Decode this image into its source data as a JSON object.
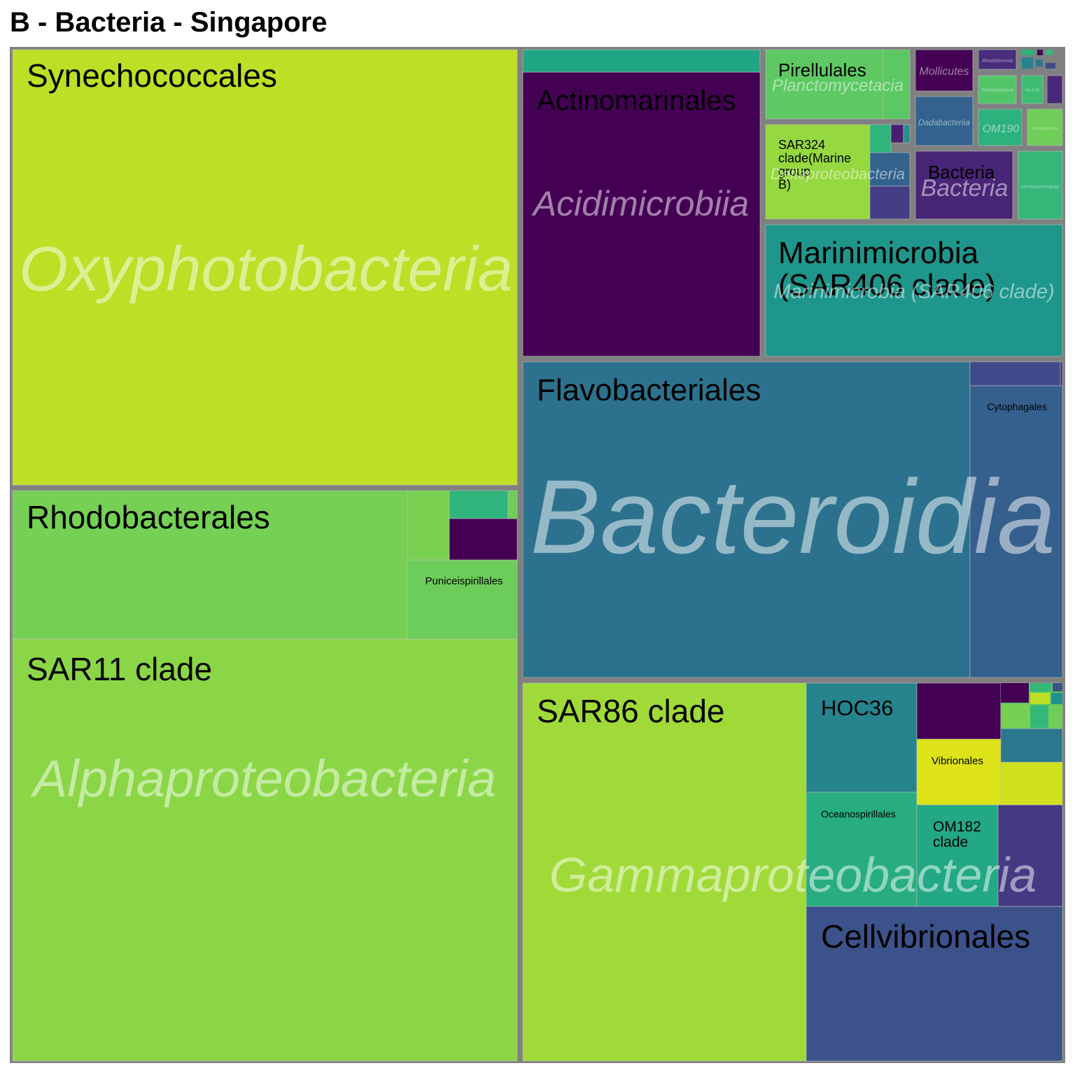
{
  "title": "B - Bacteria - Singapore",
  "chart_data": {
    "type": "treemap",
    "title": "B - Bacteria - Singapore",
    "groups": [
      {
        "label": "Oxyphotobacteria",
        "color": "#bddf26",
        "children": [
          {
            "label": "Synechococcales",
            "color": "#bddf26"
          }
        ]
      },
      {
        "label": "Alphaproteobacteria",
        "color": "#86d549",
        "children": [
          {
            "label": "SAR11 clade",
            "color": "#8bd646"
          },
          {
            "label": "Rhodobacterales",
            "color": "#75d054"
          },
          {
            "label": "Puniceispirillales",
            "color": "#6ccd5a"
          },
          {
            "label": "",
            "color": "#7ad151"
          },
          {
            "label": "",
            "color": "#2fb47c"
          },
          {
            "label": "",
            "color": "#440154"
          },
          {
            "label": "",
            "color": "#6ece58"
          }
        ]
      },
      {
        "label": "Bacteroidia",
        "color": "#2c728e",
        "children": [
          {
            "label": "Flavobacteriales",
            "color": "#2c728e"
          },
          {
            "label": "Cytophagales",
            "color": "#355f8d"
          },
          {
            "label": "",
            "color": "#3e4a89"
          },
          {
            "label": "",
            "color": "#482878"
          }
        ]
      },
      {
        "label": "Gammaproteobacteria",
        "color": "#9dd93b",
        "children": [
          {
            "label": "SAR86 clade",
            "color": "#a0da39"
          },
          {
            "label": "Cellvibrionales",
            "color": "#3b528b"
          },
          {
            "label": "HOC36",
            "color": "#25848e"
          },
          {
            "label": "Oceanospirillales",
            "color": "#27ad81"
          },
          {
            "label": "OM182 clade",
            "color": "#22a884"
          },
          {
            "label": "Vibrionales",
            "color": "#dde318"
          },
          {
            "label": "",
            "color": "#440154"
          },
          {
            "label": "",
            "color": "#443983"
          },
          {
            "label": "",
            "color": "#d0e11c"
          },
          {
            "label": "",
            "color": "#2a788e"
          },
          {
            "label": "",
            "color": "#5ec962"
          }
        ]
      },
      {
        "label": "Acidimicrobiia",
        "color": "#440154",
        "children": [
          {
            "label": "Actinomarinales",
            "color": "#440154"
          },
          {
            "label": "",
            "color": "#21a685"
          }
        ]
      },
      {
        "label": "Marinimicrobia (SAR406 clade)",
        "color": "#1f968b",
        "children": [
          {
            "label": "Marinimicrobia (SAR406 clade)",
            "color": "#1f968b"
          }
        ]
      },
      {
        "label": "Planctomycetacia",
        "color": "#5ec962",
        "children": [
          {
            "label": "Pirellulales",
            "color": "#5ec962"
          },
          {
            "label": "",
            "color": "#5cc863"
          }
        ]
      },
      {
        "label": "Deltaproteobacteria",
        "color": "#95d840",
        "children": [
          {
            "label": "SAR324 clade(Marine group B)",
            "color": "#95d840"
          },
          {
            "label": "",
            "color": "#2fb47c"
          },
          {
            "label": "",
            "color": "#33638d"
          },
          {
            "label": "",
            "color": "#433e85"
          },
          {
            "label": "",
            "color": "#481f70"
          },
          {
            "label": "",
            "color": "#21918c"
          }
        ]
      },
      {
        "label": "Mollicutes",
        "color": "#440154",
        "children": [
          {
            "label": "",
            "color": "#440154"
          }
        ]
      },
      {
        "label": "Dadabacteriia",
        "color": "#33638d",
        "children": [
          {
            "label": "",
            "color": "#33638d"
          }
        ]
      },
      {
        "label": "Bacteria",
        "color": "#482576",
        "children": [
          {
            "label": "Bacteria",
            "color": "#482576"
          }
        ]
      },
      {
        "label": "OM190",
        "color": "#2db27d",
        "children": [
          {
            "label": "",
            "color": "#2db27d"
          }
        ]
      },
      {
        "label": "Verrucomicrobiae",
        "color": "#35b779",
        "children": [
          {
            "label": "",
            "color": "#35b779"
          }
        ]
      },
      {
        "label": "Dehalococcoidia",
        "color": "#6ece58",
        "children": [
          {
            "label": "",
            "color": "#6ece58"
          }
        ]
      },
      {
        "label": "Rhodothermia",
        "color": "#472d7b",
        "children": [
          {
            "label": "",
            "color": "#472d7b"
          }
        ]
      },
      {
        "label": "Proteobacteria",
        "color": "#52c569",
        "children": [
          {
            "label": "",
            "color": "#52c569"
          }
        ]
      },
      {
        "label": "Rs-K70",
        "color": "#3dbc74",
        "children": [
          {
            "label": "",
            "color": "#3dbc74"
          }
        ]
      },
      {
        "label": "",
        "color": "#482878",
        "children": [
          {
            "label": "",
            "color": "#482878"
          }
        ]
      }
    ]
  }
}
